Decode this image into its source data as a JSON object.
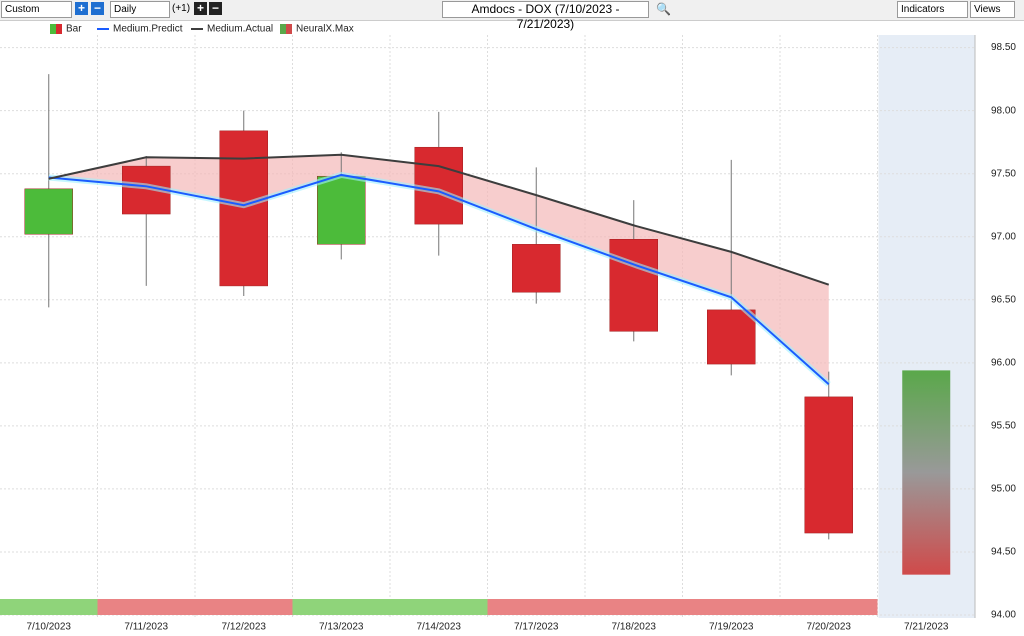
{
  "toolbar": {
    "period": "Custom",
    "interval": "Daily",
    "offset": "(+1)",
    "indicators": "Indicators",
    "views": "Views"
  },
  "chart_data": {
    "type": "candlestick",
    "title": "Amdocs - DOX (7/10/2023 - 7/21/2023)",
    "categories": [
      "7/10/2023",
      "7/11/2023",
      "7/12/2023",
      "7/13/2023",
      "7/14/2023",
      "7/17/2023",
      "7/18/2023",
      "7/19/2023",
      "7/20/2023",
      "7/21/2023"
    ],
    "series": [
      {
        "name": "Bar",
        "type": "candlestick",
        "up_color": "#4cbb3a",
        "down_color": "#d8292f",
        "open": [
          97.02,
          97.56,
          97.84,
          96.94,
          97.71,
          96.94,
          96.98,
          96.42,
          95.73,
          null
        ],
        "high": [
          98.29,
          97.64,
          98.0,
          97.67,
          97.99,
          97.55,
          97.29,
          97.61,
          95.93,
          null
        ],
        "low": [
          96.44,
          96.61,
          96.53,
          96.82,
          96.85,
          96.47,
          96.17,
          95.9,
          94.6,
          null
        ],
        "close": [
          97.38,
          97.18,
          96.61,
          97.48,
          97.1,
          96.56,
          96.25,
          95.99,
          94.65,
          null
        ]
      },
      {
        "name": "Medium.Predict",
        "type": "line",
        "color": "#1a5cff",
        "values": [
          97.47,
          97.4,
          97.25,
          97.49,
          97.36,
          97.06,
          96.78,
          96.52,
          95.83,
          null
        ]
      },
      {
        "name": "Medium.Actual",
        "type": "line",
        "color": "#3d3d3d",
        "values": [
          97.46,
          97.63,
          97.62,
          97.65,
          97.56,
          97.33,
          97.09,
          96.88,
          96.62,
          null
        ]
      },
      {
        "name": "NeuralX.Max",
        "type": "range",
        "top_color": "#5aa84a",
        "bottom_color": "#d04a4a",
        "high": [
          null,
          null,
          null,
          null,
          null,
          null,
          null,
          null,
          null,
          95.94
        ],
        "low": [
          null,
          null,
          null,
          null,
          null,
          null,
          null,
          null,
          null,
          94.32
        ]
      }
    ],
    "signal_colors": [
      "#8fd47a",
      "#e98384",
      "#e98384",
      "#8fd47a",
      "#8fd47a",
      "#e98384",
      "#e98384",
      "#e98384",
      "#e98384",
      null
    ],
    "ylim": [
      94,
      98.6
    ],
    "yticks": [
      {
        "value": 94,
        "label": "94.00"
      },
      {
        "value": 94.5,
        "label": "94.50"
      },
      {
        "value": 95,
        "label": "95.00"
      },
      {
        "value": 95.5,
        "label": "95.50"
      },
      {
        "value": 96,
        "label": "96.00"
      },
      {
        "value": 96.5,
        "label": "96.50"
      },
      {
        "value": 97,
        "label": "97.00"
      },
      {
        "value": 97.5,
        "label": "97.50"
      },
      {
        "value": 98,
        "label": "98.00"
      },
      {
        "value": 98.5,
        "label": "98.50"
      }
    ],
    "grid": true
  }
}
